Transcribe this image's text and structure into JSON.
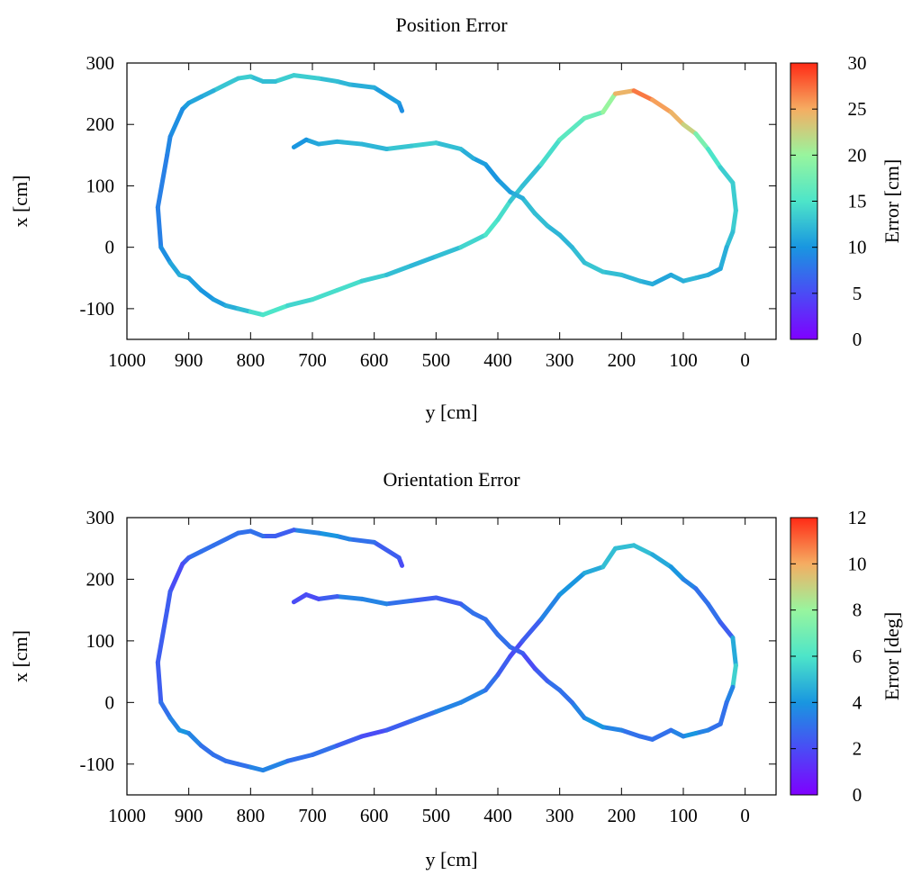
{
  "chart_data": [
    {
      "type": "scatter",
      "title": "Position Error",
      "xlabel": "y [cm]",
      "ylabel": "x [cm]",
      "xlim": [
        1000,
        -50
      ],
      "ylim": [
        -150,
        300
      ],
      "xticks": [
        "1000",
        "900",
        "800",
        "700",
        "600",
        "500",
        "400",
        "300",
        "200",
        "100",
        "0"
      ],
      "yticks": [
        "-100",
        "0",
        "100",
        "200",
        "300"
      ],
      "colorbar": {
        "label": "Error [cm]",
        "range": [
          0,
          30
        ],
        "ticks": [
          "0",
          "5",
          "10",
          "15",
          "20",
          "25",
          "30"
        ]
      },
      "grid": false,
      "series": [
        {
          "x": [
            555,
            560,
            600,
            640,
            660,
            690,
            730,
            760,
            780,
            800,
            820,
            860,
            880,
            900,
            910,
            930,
            935,
            950,
            945,
            930,
            915,
            900,
            880,
            860,
            840,
            820,
            800,
            780,
            740,
            700,
            660,
            620,
            580,
            540,
            500,
            460,
            420,
            400,
            380,
            360,
            330,
            300,
            260,
            230,
            210,
            180,
            150,
            120,
            100,
            80,
            60,
            40,
            20,
            15,
            20,
            30,
            40,
            60,
            80,
            100,
            120,
            150,
            170,
            200,
            230,
            260,
            280,
            300,
            320,
            340,
            360,
            380,
            400,
            420,
            440,
            460,
            500,
            540,
            580,
            620,
            660,
            690,
            710,
            730
          ],
          "y": [
            222,
            235,
            260,
            265,
            270,
            275,
            280,
            270,
            270,
            278,
            275,
            255,
            245,
            235,
            225,
            180,
            150,
            65,
            0,
            -25,
            -45,
            -50,
            -70,
            -85,
            -95,
            -100,
            -105,
            -110,
            -95,
            -85,
            -70,
            -55,
            -45,
            -30,
            -15,
            0,
            20,
            45,
            75,
            100,
            135,
            175,
            210,
            220,
            250,
            255,
            240,
            220,
            200,
            185,
            160,
            130,
            105,
            60,
            25,
            0,
            -35,
            -45,
            -50,
            -55,
            -45,
            -60,
            -55,
            -45,
            -40,
            -25,
            0,
            20,
            35,
            55,
            80,
            90,
            110,
            135,
            145,
            160,
            170,
            165,
            160,
            168,
            172,
            168,
            175,
            163
          ],
          "error": [
            9,
            10,
            11,
            12,
            12,
            13,
            14,
            13,
            12,
            13,
            14,
            12,
            11,
            11,
            10,
            9,
            9,
            8,
            9,
            10,
            12,
            11,
            10,
            10,
            11,
            12,
            13,
            16,
            14,
            14,
            15,
            14,
            13,
            12,
            12,
            13,
            15,
            15,
            14,
            12,
            13,
            16,
            16,
            18,
            22,
            27,
            27,
            24,
            25,
            20,
            16,
            14,
            13,
            14,
            13,
            12,
            11,
            11,
            12,
            12,
            11,
            11,
            12,
            12,
            13,
            13,
            12,
            12,
            12,
            13,
            12,
            11,
            10,
            10,
            11,
            12,
            13,
            14,
            12,
            12,
            12,
            11,
            11,
            9
          ]
        }
      ]
    },
    {
      "type": "scatter",
      "title": "Orientation Error",
      "xlabel": "y [cm]",
      "ylabel": "x [cm]",
      "xlim": [
        1000,
        -50
      ],
      "ylim": [
        -150,
        300
      ],
      "xticks": [
        "1000",
        "900",
        "800",
        "700",
        "600",
        "500",
        "400",
        "300",
        "200",
        "100",
        "0"
      ],
      "yticks": [
        "-100",
        "0",
        "100",
        "200",
        "300"
      ],
      "colorbar": {
        "label": "Error [deg]",
        "range": [
          0,
          12
        ],
        "ticks": [
          "0",
          "2",
          "4",
          "6",
          "8",
          "10",
          "12"
        ]
      },
      "grid": false,
      "series": [
        {
          "x": [
            555,
            560,
            600,
            640,
            660,
            690,
            730,
            760,
            780,
            800,
            820,
            860,
            880,
            900,
            910,
            930,
            935,
            950,
            945,
            930,
            915,
            900,
            880,
            860,
            840,
            820,
            800,
            780,
            740,
            700,
            660,
            620,
            580,
            540,
            500,
            460,
            420,
            400,
            380,
            360,
            330,
            300,
            260,
            230,
            210,
            180,
            150,
            120,
            100,
            80,
            60,
            40,
            20,
            15,
            20,
            30,
            40,
            60,
            80,
            100,
            120,
            150,
            170,
            200,
            230,
            260,
            280,
            300,
            320,
            340,
            360,
            380,
            400,
            420,
            440,
            460,
            500,
            540,
            580,
            620,
            660,
            690,
            710,
            730
          ],
          "y": [
            222,
            235,
            260,
            265,
            270,
            275,
            280,
            270,
            270,
            278,
            275,
            255,
            245,
            235,
            225,
            180,
            150,
            65,
            0,
            -25,
            -45,
            -50,
            -70,
            -85,
            -95,
            -100,
            -105,
            -110,
            -95,
            -85,
            -70,
            -55,
            -45,
            -30,
            -15,
            0,
            20,
            45,
            75,
            100,
            135,
            175,
            210,
            220,
            250,
            255,
            240,
            220,
            200,
            185,
            160,
            130,
            105,
            60,
            25,
            0,
            -35,
            -45,
            -50,
            -55,
            -45,
            -60,
            -55,
            -45,
            -40,
            -25,
            0,
            20,
            35,
            55,
            80,
            90,
            110,
            135,
            145,
            160,
            170,
            165,
            160,
            168,
            172,
            168,
            175,
            163
          ],
          "error": [
            2,
            2,
            3,
            3,
            4,
            4,
            3,
            2,
            3,
            3,
            3,
            3,
            3,
            3,
            2,
            2,
            3,
            2,
            3,
            3,
            4,
            4,
            3,
            3,
            3,
            3,
            3,
            4,
            3,
            3,
            3,
            2,
            2,
            3,
            3,
            4,
            3,
            3,
            2,
            2,
            3,
            4,
            4,
            5,
            5,
            5,
            5,
            4,
            4,
            3,
            3,
            3,
            2,
            7,
            4,
            3,
            3,
            3,
            4,
            4,
            3,
            3,
            3,
            3,
            4,
            4,
            3,
            3,
            3,
            2,
            2,
            3,
            3,
            3,
            3,
            3,
            2,
            3,
            3,
            4,
            3,
            2,
            2,
            2
          ]
        }
      ]
    }
  ]
}
